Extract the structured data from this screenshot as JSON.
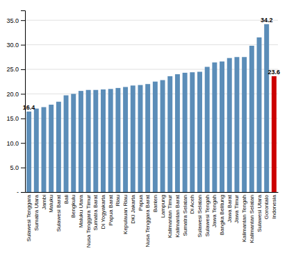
{
  "chart_data": {
    "type": "bar",
    "categories": [
      "Sulawesi Tenggara",
      "Sumatra Utara",
      "Jambi",
      "Maluku",
      "Sulawesi Barat",
      "Bali",
      "Bengkulu",
      "Maluku Utara",
      "Nusa Tenggara Timur",
      "Sumatra Barat",
      "Di Yogyakarta",
      "Papua Barat",
      "Riau",
      "Kepulauan Riau",
      "DKI Jakarta",
      "Papua",
      "Nusa Tenggara Barat",
      "Banten",
      "Lampung",
      "Kalimantan Timur",
      "Kalimantan Barat",
      "Sumatra Selatan",
      "Di Aceh",
      "Sulawesi Selatan",
      "Sulawesi Tengah",
      "Jawa Tengah",
      "Bangka Belitung",
      "Jawa Barat",
      "Jawa Timur",
      "Kalimantan Tengah",
      "Kalimantan Selatan",
      "Sulawesi Utara",
      "Gorontalo",
      "Indonesia"
    ],
    "values": [
      16.4,
      17.0,
      17.3,
      17.8,
      18.4,
      19.7,
      20.0,
      20.6,
      20.8,
      20.8,
      20.9,
      21.0,
      21.2,
      21.4,
      21.7,
      21.8,
      22.0,
      22.5,
      22.8,
      23.6,
      24.0,
      24.3,
      24.4,
      24.5,
      25.5,
      26.4,
      26.6,
      27.3,
      27.5,
      27.5,
      29.8,
      31.5,
      34.2,
      23.6
    ],
    "value_labels": [
      "16.4",
      null,
      null,
      null,
      null,
      null,
      null,
      null,
      null,
      null,
      null,
      null,
      null,
      null,
      null,
      null,
      null,
      null,
      null,
      null,
      null,
      null,
      null,
      null,
      null,
      null,
      null,
      null,
      null,
      null,
      null,
      null,
      "34.2",
      "23.6"
    ],
    "colors": [
      "#5B8DB8",
      "#5B8DB8",
      "#5B8DB8",
      "#5B8DB8",
      "#5B8DB8",
      "#5B8DB8",
      "#5B8DB8",
      "#5B8DB8",
      "#5B8DB8",
      "#5B8DB8",
      "#5B8DB8",
      "#5B8DB8",
      "#5B8DB8",
      "#5B8DB8",
      "#5B8DB8",
      "#5B8DB8",
      "#5B8DB8",
      "#5B8DB8",
      "#5B8DB8",
      "#5B8DB8",
      "#5B8DB8",
      "#5B8DB8",
      "#5B8DB8",
      "#5B8DB8",
      "#5B8DB8",
      "#5B8DB8",
      "#5B8DB8",
      "#5B8DB8",
      "#5B8DB8",
      "#5B8DB8",
      "#5B8DB8",
      "#5B8DB8",
      "#5B8DB8",
      "#CC0000"
    ],
    "ylim": [
      0,
      37
    ],
    "yticks": [
      {
        "value": 0,
        "label": "-"
      },
      {
        "value": 5.0,
        "label": "5.0"
      },
      {
        "value": 10.0,
        "label": "10.0"
      },
      {
        "value": 15.0,
        "label": "15.0"
      },
      {
        "value": 20.0,
        "label": "20.0"
      },
      {
        "value": 25.0,
        "label": "25.0"
      },
      {
        "value": 30.0,
        "label": "30.0"
      },
      {
        "value": 35.0,
        "label": "35.0"
      }
    ],
    "grid": true
  }
}
